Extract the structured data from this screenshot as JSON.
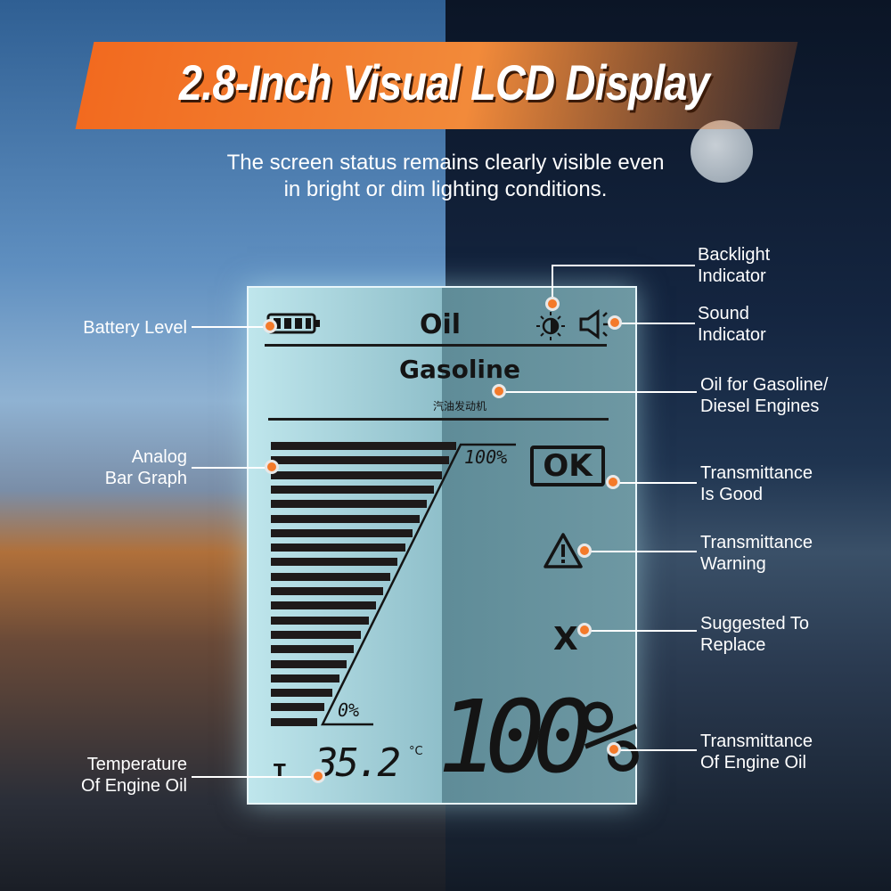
{
  "title": "2.8-Inch Visual LCD Display",
  "subtitle_line1": "The screen status remains clearly visible even",
  "subtitle_line2": "in bright or dim lighting conditions.",
  "colors": {
    "accent": "#f47a2a",
    "lcd": "#8fbfca"
  },
  "lcd": {
    "header": "Oil",
    "fuel": "Gasoline",
    "fuel_cn": "汽油发动机",
    "bar_top_label": "100%",
    "bar_bottom_label": "0%",
    "bar_level_percent": 100,
    "status": "OK",
    "warning_icon": "warning-triangle-icon",
    "replace_symbol": "X",
    "temp_prefix": "T",
    "temperature": "35.2",
    "temp_unit": "°C",
    "transmittance": "100%",
    "icons": [
      "battery-icon",
      "backlight-icon",
      "sound-icon"
    ]
  },
  "callouts": {
    "battery": "Battery Level",
    "analog_1": "Analog",
    "analog_2": "Bar Graph",
    "temp_1": "Temperature",
    "temp_2": "Of Engine Oil",
    "backlight_1": "Backlight",
    "backlight_2": "Indicator",
    "sound_1": "Sound",
    "sound_2": "Indicator",
    "oil_1": "Oil for Gasoline/",
    "oil_2": "Diesel Engines",
    "good_1": "Transmittance",
    "good_2": "Is Good",
    "warn_1": "Transmittance",
    "warn_2": "Warning",
    "replace_1": "Suggested To",
    "replace_2": "Replace",
    "trans_1": "Transmittance",
    "trans_2": "Of Engine Oil"
  }
}
